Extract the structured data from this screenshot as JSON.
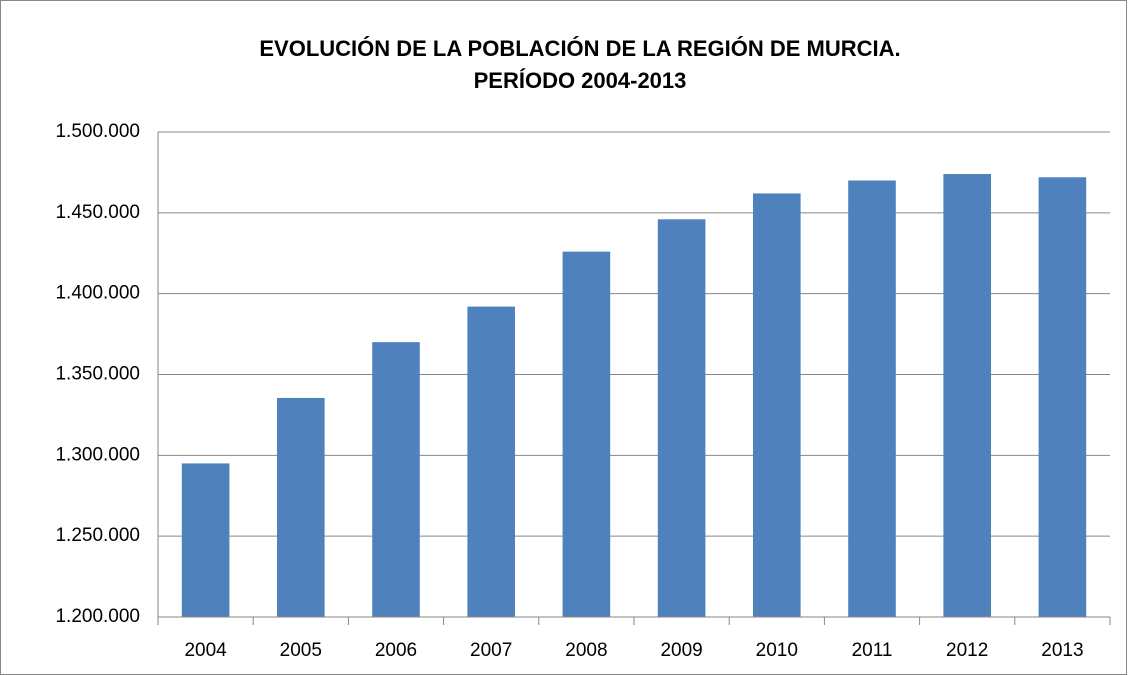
{
  "chart_data": {
    "type": "bar",
    "title": [
      "EVOLUCIÓN  DE LA POBLACIÓN DE LA REGIÓN DE MURCIA.",
      "PERÍODO 2004-2013"
    ],
    "categories": [
      "2004",
      "2005",
      "2006",
      "2007",
      "2008",
      "2009",
      "2010",
      "2011",
      "2012",
      "2013"
    ],
    "values": [
      1295000,
      1335500,
      1370000,
      1392000,
      1426000,
      1446000,
      1462000,
      1470000,
      1474000,
      1472000
    ],
    "color": "#4f81bd",
    "ylim": [
      1200000,
      1500000
    ],
    "yticks": [
      {
        "value": 1200000,
        "label": "1.200.000"
      },
      {
        "value": 1250000,
        "label": "1.250.000"
      },
      {
        "value": 1300000,
        "label": "1.300.000"
      },
      {
        "value": 1350000,
        "label": "1.350.000"
      },
      {
        "value": 1400000,
        "label": "1.400.000"
      },
      {
        "value": 1450000,
        "label": "1.450.000"
      },
      {
        "value": 1500000,
        "label": "1.500.000"
      }
    ],
    "grid": true
  }
}
